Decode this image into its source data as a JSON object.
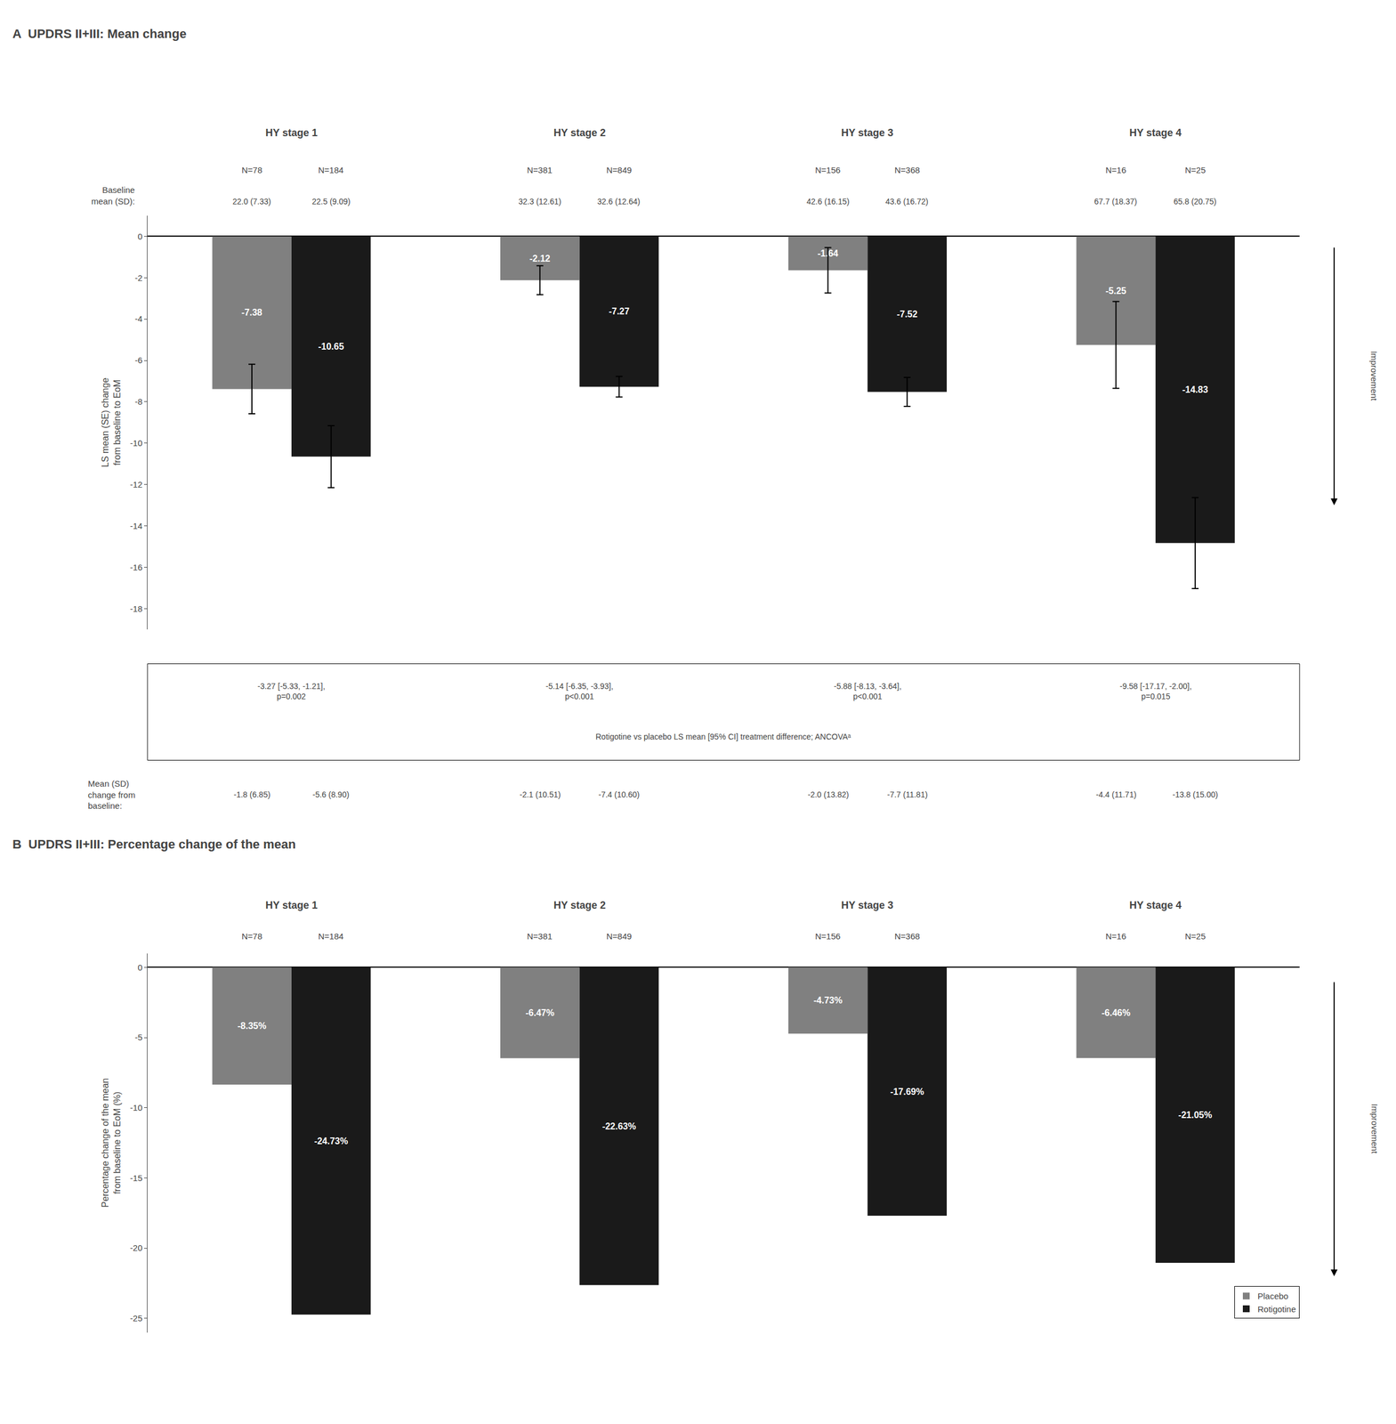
{
  "chart_data": [
    {
      "type": "bar",
      "title": "A  UPDRS II+III: Mean change",
      "ylabel": "LS mean (SE) change\nfrom baseline to EoM",
      "categories": [
        "HY stage 1",
        "HY stage 2",
        "HY stage 3",
        "HY stage 4"
      ],
      "series": [
        {
          "name": "Placebo",
          "color": "#808080",
          "values": [
            -7.38,
            -2.12,
            -1.64,
            -5.25
          ],
          "errors": [
            1.2,
            0.7,
            1.1,
            2.1
          ],
          "n_labels": [
            "N=78",
            "N=381",
            "N=156",
            "N=16"
          ],
          "baseline_means": [
            "22.0 (7.33)",
            "32.3 (12.61)",
            "42.6 (16.15)",
            "67.7 (18.37)"
          ],
          "mean_sd_change": [
            "-1.8 (6.85)",
            "-2.1 (10.51)",
            "-2.0 (13.82)",
            "-4.4 (11.71)"
          ]
        },
        {
          "name": "Rotigotine",
          "color": "#1a1a1a",
          "values": [
            -10.65,
            -7.27,
            -7.52,
            -14.83
          ],
          "errors": [
            1.5,
            0.5,
            0.7,
            2.2
          ],
          "n_labels": [
            "N=184",
            "N=849",
            "N=368",
            "N=25"
          ],
          "baseline_means": [
            "22.5 (9.09)",
            "32.6 (12.64)",
            "43.6 (16.72)",
            "65.8 (20.75)"
          ],
          "mean_sd_change": [
            "-5.6 (8.90)",
            "-7.4 (10.60)",
            "-7.7 (11.81)",
            "-13.8 (15.00)"
          ]
        }
      ],
      "baseline_label": "Baseline\nmean (SD):",
      "change_label": "Mean (SD)\nchange from\nbaseline:",
      "treatment_diff": [
        "-3.27 [-5.33, -1.21],\np=0.002",
        "-5.14 [-6.35, -3.93],\np<0.001",
        "-5.88 [-8.13, -3.64],\np<0.001",
        "-9.58 [-17.17, -2.00],\np=0.015"
      ],
      "treatment_diff_label": "Rotigotine vs placebo LS mean [95% CI] treatment difference; ANCOVAᵃ",
      "arrow_label": "Improvement",
      "ylim": [
        -19,
        1
      ],
      "yticks": [
        0,
        -2,
        -4,
        -6,
        -8,
        -10,
        -12,
        -14,
        -16,
        -18
      ],
      "grid": false,
      "legend": false,
      "data_labels": true,
      "tick_labels": "y"
    },
    {
      "type": "bar",
      "title": "B  UPDRS II+III: Percentage change of the mean",
      "ylabel": "Percentage change of the mean\nfrom baseline to EoM (%)",
      "categories": [
        "HY stage 1",
        "HY stage 2",
        "HY stage 3",
        "HY stage 4"
      ],
      "series": [
        {
          "name": "Placebo",
          "color": "#808080",
          "values": [
            -8.35,
            -6.47,
            -4.73,
            -6.46
          ],
          "value_labels": [
            "-8.35%",
            "-6.47%",
            "-4.73%",
            "-6.46%"
          ],
          "n_labels": [
            "N=78",
            "N=381",
            "N=156",
            "N=16"
          ]
        },
        {
          "name": "Rotigotine",
          "color": "#1a1a1a",
          "values": [
            -24.73,
            -22.63,
            -17.69,
            -21.05
          ],
          "value_labels": [
            "-24.73%",
            "-22.63%",
            "-17.69%",
            "-21.05%"
          ],
          "n_labels": [
            "N=184",
            "N=849",
            "N=368",
            "N=25"
          ]
        }
      ],
      "arrow_label": "Improvement",
      "ylim": [
        -26,
        1
      ],
      "yticks": [
        0,
        -5,
        -10,
        -15,
        -20,
        -25
      ],
      "grid": false,
      "legend": "lower right",
      "data_labels": true,
      "tick_labels": "y"
    }
  ]
}
